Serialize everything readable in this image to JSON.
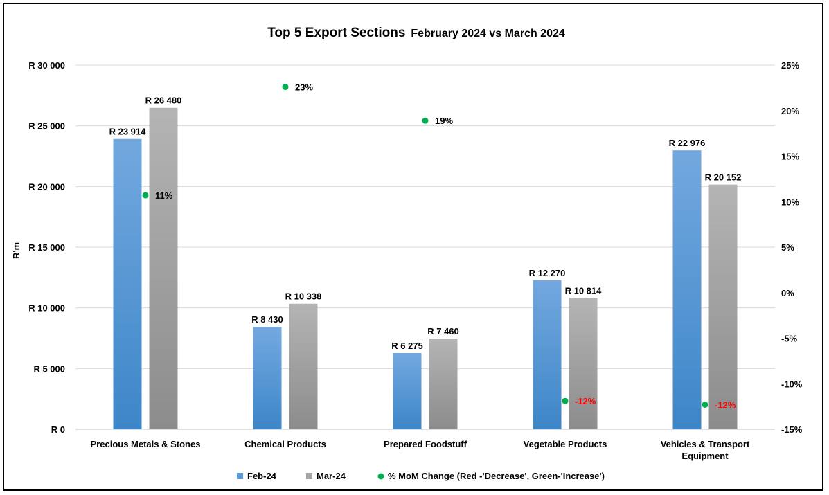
{
  "chart_data": {
    "type": "bar",
    "title": "Top 5 Export Sections",
    "subtitle": "February 2024 vs March 2024",
    "ylabel": "R'm",
    "ylim": [
      0,
      30000
    ],
    "y2lim": [
      -15,
      25
    ],
    "y_ticks": [
      "R 0",
      "R 5 000",
      "R 10 000",
      "R 15 000",
      "R 20 000",
      "R 25 000",
      "R 30 000"
    ],
    "y2_ticks": [
      "-15%",
      "-10%",
      "-5%",
      "0%",
      "5%",
      "10%",
      "15%",
      "20%",
      "25%"
    ],
    "grid": true,
    "legend_position": "bottom",
    "categories": [
      [
        "Precious Metals & Stones"
      ],
      [
        "Chemical Products"
      ],
      [
        "Prepared Foodstuff"
      ],
      [
        "Vegetable Products"
      ],
      [
        "Vehicles & Transport",
        "Equipment"
      ]
    ],
    "series": [
      {
        "name": "Feb-24",
        "values": [
          23914,
          8430,
          6275,
          12270,
          22976
        ],
        "labels": [
          "R 23 914",
          "R 8 430",
          "R 6 275",
          "R 12 270",
          "R 22 976"
        ],
        "color": "#5b9bd5"
      },
      {
        "name": "Mar-24",
        "values": [
          26480,
          10338,
          7460,
          10814,
          20152
        ],
        "labels": [
          "R 26 480",
          "R 10 338",
          "R 7 460",
          "R 10 814",
          "R 20 152"
        ],
        "color": "#a5a5a5"
      }
    ],
    "pct_series": {
      "name": "% MoM Change (Red -'Decrease', Green-'Increase')",
      "values": [
        10.7,
        22.6,
        18.9,
        -11.9,
        -12.3
      ],
      "labels": [
        "11%",
        "23%",
        "19%",
        "-12%",
        "-12%"
      ],
      "marker_color": "#00b050",
      "increase_label_color": "#000000",
      "decrease_label_color": "#ff0000"
    }
  }
}
